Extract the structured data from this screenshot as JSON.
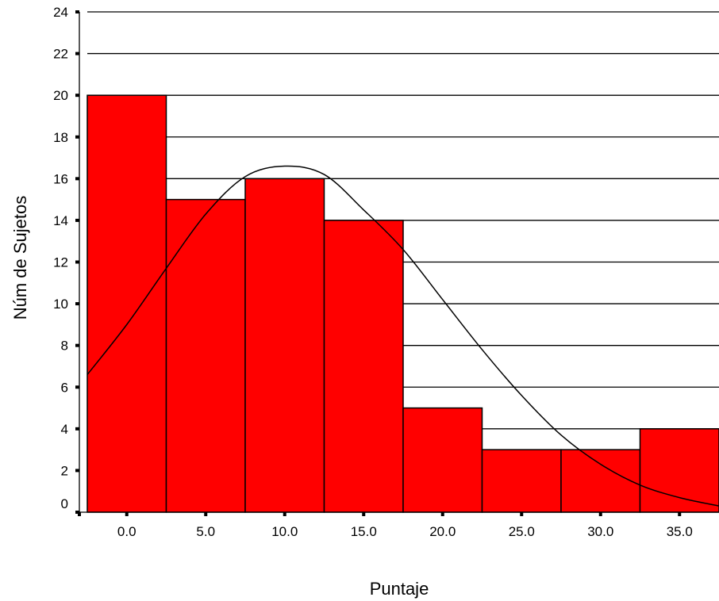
{
  "chart_data": {
    "type": "bar",
    "subtype": "histogram",
    "title": "",
    "xlabel": "Puntaje",
    "ylabel": "Núm de Sujetos",
    "x_tick_labels": [
      "0.0",
      "5.0",
      "10.0",
      "15.0",
      "20.0",
      "25.0",
      "30.0",
      "35.0"
    ],
    "bin_centers": [
      0,
      5,
      10,
      15,
      20,
      25,
      30,
      35
    ],
    "bin_width": 5,
    "values": [
      20,
      15,
      16,
      14,
      5,
      3,
      3,
      4
    ],
    "y_ticks": [
      "0",
      "2",
      "4",
      "6",
      "8",
      "10",
      "12",
      "14",
      "16",
      "18",
      "20",
      "22",
      "24"
    ],
    "ylim": [
      0,
      24
    ],
    "xlim": [
      -2.5,
      37.5
    ],
    "grid": "horizontal",
    "bar_color": "#ff0000",
    "normal_curve": {
      "mean": 10.8,
      "peak": 16.7,
      "points": [
        [
          -2.5,
          6.6
        ],
        [
          0,
          9.0
        ],
        [
          2.5,
          11.7
        ],
        [
          5,
          14.3
        ],
        [
          7.5,
          16.1
        ],
        [
          10,
          16.6
        ],
        [
          12.5,
          16.2
        ],
        [
          15,
          14.5
        ],
        [
          17.5,
          12.6
        ],
        [
          20,
          10.2
        ],
        [
          22.5,
          7.8
        ],
        [
          25,
          5.6
        ],
        [
          27.5,
          3.7
        ],
        [
          30,
          2.3
        ],
        [
          32.5,
          1.3
        ],
        [
          35,
          0.7
        ],
        [
          37.5,
          0.3
        ]
      ]
    }
  }
}
